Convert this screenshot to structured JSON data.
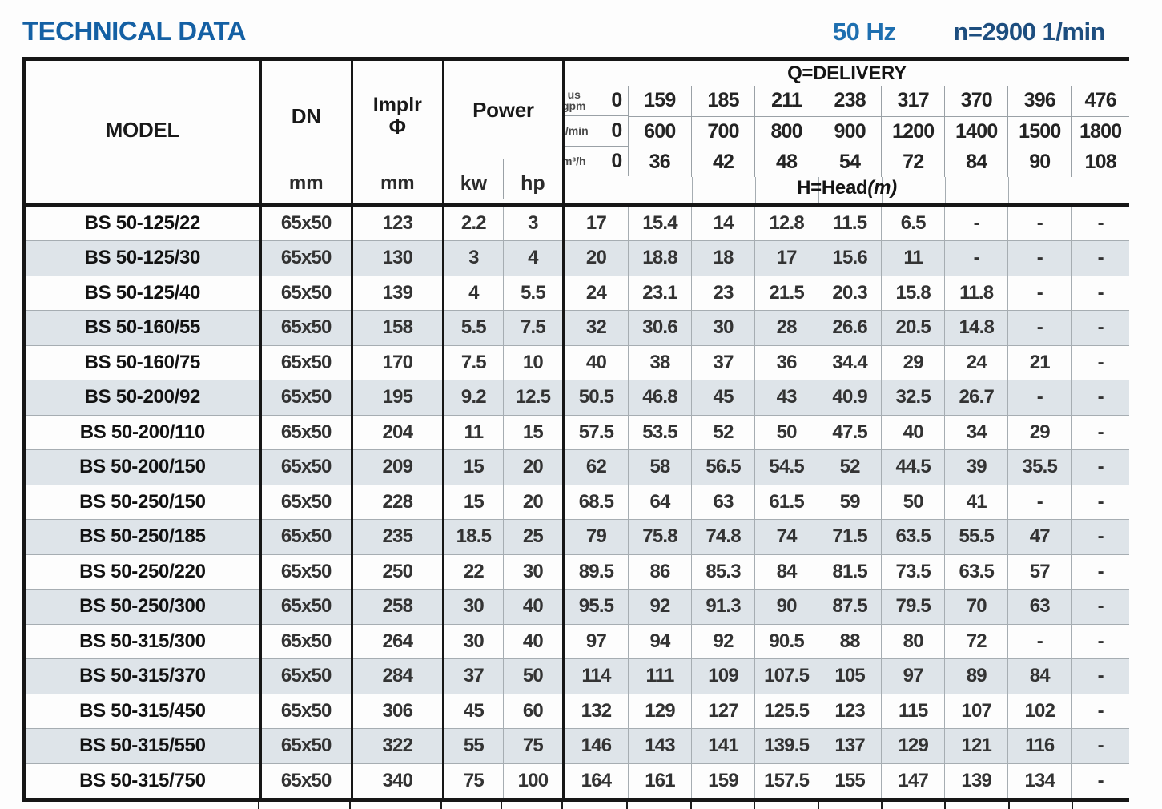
{
  "page": {
    "title": "TECHNICAL DATA",
    "frequency": "50 Hz",
    "rotation_speed": "n=2900 1/min"
  },
  "colors": {
    "title_blue": "#1460a4",
    "frequency_blue": "#1e6fb0",
    "speed_navy": "#1d4e7f",
    "row_shade": "#dee4e9",
    "thick_border": "#161616",
    "thin_grid": "#a6adb2"
  },
  "chart_data": {
    "type": "table",
    "title": "TECHNICAL DATA",
    "header": {
      "model": "MODEL",
      "dn": "DN",
      "dn_unit": "mm",
      "impeller": "Implr",
      "impeller_symbol": "Φ",
      "impeller_unit": "mm",
      "power": "Power",
      "power_kw": "kw",
      "power_hp": "hp",
      "delivery": "Q=DELIVERY",
      "head": "H=Head",
      "head_unit": "(m)",
      "flow_rows": [
        {
          "unit": "us\ngpm",
          "values": [
            "0",
            "159",
            "185",
            "211",
            "238",
            "317",
            "370",
            "396",
            "476"
          ]
        },
        {
          "unit": "l/min",
          "values": [
            "0",
            "600",
            "700",
            "800",
            "900",
            "1200",
            "1400",
            "1500",
            "1800"
          ]
        },
        {
          "unit": "m³/h",
          "values": [
            "0",
            "36",
            "42",
            "48",
            "54",
            "72",
            "84",
            "90",
            "108"
          ]
        }
      ]
    },
    "rows": [
      {
        "model": "BS 50-125/22",
        "dn": "65x50",
        "impeller": "123",
        "kw": "2.2",
        "hp": "3",
        "head": [
          "17",
          "15.4",
          "14",
          "12.8",
          "11.5",
          "6.5",
          "-",
          "-",
          "-"
        ]
      },
      {
        "model": "BS 50-125/30",
        "dn": "65x50",
        "impeller": "130",
        "kw": "3",
        "hp": "4",
        "head": [
          "20",
          "18.8",
          "18",
          "17",
          "15.6",
          "11",
          "-",
          "-",
          "-"
        ]
      },
      {
        "model": "BS 50-125/40",
        "dn": "65x50",
        "impeller": "139",
        "kw": "4",
        "hp": "5.5",
        "head": [
          "24",
          "23.1",
          "23",
          "21.5",
          "20.3",
          "15.8",
          "11.8",
          "-",
          "-"
        ]
      },
      {
        "model": "BS 50-160/55",
        "dn": "65x50",
        "impeller": "158",
        "kw": "5.5",
        "hp": "7.5",
        "head": [
          "32",
          "30.6",
          "30",
          "28",
          "26.6",
          "20.5",
          "14.8",
          "-",
          "-"
        ]
      },
      {
        "model": "BS 50-160/75",
        "dn": "65x50",
        "impeller": "170",
        "kw": "7.5",
        "hp": "10",
        "head": [
          "40",
          "38",
          "37",
          "36",
          "34.4",
          "29",
          "24",
          "21",
          "-"
        ]
      },
      {
        "model": "BS 50-200/92",
        "dn": "65x50",
        "impeller": "195",
        "kw": "9.2",
        "hp": "12.5",
        "head": [
          "50.5",
          "46.8",
          "45",
          "43",
          "40.9",
          "32.5",
          "26.7",
          "-",
          "-"
        ]
      },
      {
        "model": "BS 50-200/110",
        "dn": "65x50",
        "impeller": "204",
        "kw": "11",
        "hp": "15",
        "head": [
          "57.5",
          "53.5",
          "52",
          "50",
          "47.5",
          "40",
          "34",
          "29",
          "-"
        ]
      },
      {
        "model": "BS 50-200/150",
        "dn": "65x50",
        "impeller": "209",
        "kw": "15",
        "hp": "20",
        "head": [
          "62",
          "58",
          "56.5",
          "54.5",
          "52",
          "44.5",
          "39",
          "35.5",
          "-"
        ]
      },
      {
        "model": "BS 50-250/150",
        "dn": "65x50",
        "impeller": "228",
        "kw": "15",
        "hp": "20",
        "head": [
          "68.5",
          "64",
          "63",
          "61.5",
          "59",
          "50",
          "41",
          "-",
          "-"
        ]
      },
      {
        "model": "BS 50-250/185",
        "dn": "65x50",
        "impeller": "235",
        "kw": "18.5",
        "hp": "25",
        "head": [
          "79",
          "75.8",
          "74.8",
          "74",
          "71.5",
          "63.5",
          "55.5",
          "47",
          "-"
        ]
      },
      {
        "model": "BS 50-250/220",
        "dn": "65x50",
        "impeller": "250",
        "kw": "22",
        "hp": "30",
        "head": [
          "89.5",
          "86",
          "85.3",
          "84",
          "81.5",
          "73.5",
          "63.5",
          "57",
          "-"
        ]
      },
      {
        "model": "BS 50-250/300",
        "dn": "65x50",
        "impeller": "258",
        "kw": "30",
        "hp": "40",
        "head": [
          "95.5",
          "92",
          "91.3",
          "90",
          "87.5",
          "79.5",
          "70",
          "63",
          "-"
        ]
      },
      {
        "model": "BS 50-315/300",
        "dn": "65x50",
        "impeller": "264",
        "kw": "30",
        "hp": "40",
        "head": [
          "97",
          "94",
          "92",
          "90.5",
          "88",
          "80",
          "72",
          "-",
          "-"
        ]
      },
      {
        "model": "BS 50-315/370",
        "dn": "65x50",
        "impeller": "284",
        "kw": "37",
        "hp": "50",
        "head": [
          "114",
          "111",
          "109",
          "107.5",
          "105",
          "97",
          "89",
          "84",
          "-"
        ]
      },
      {
        "model": "BS 50-315/450",
        "dn": "65x50",
        "impeller": "306",
        "kw": "45",
        "hp": "60",
        "head": [
          "132",
          "129",
          "127",
          "125.5",
          "123",
          "115",
          "107",
          "102",
          "-"
        ]
      },
      {
        "model": "BS 50-315/550",
        "dn": "65x50",
        "impeller": "322",
        "kw": "55",
        "hp": "75",
        "head": [
          "146",
          "143",
          "141",
          "139.5",
          "137",
          "129",
          "121",
          "116",
          "-"
        ]
      },
      {
        "model": "BS 50-315/750",
        "dn": "65x50",
        "impeller": "340",
        "kw": "75",
        "hp": "100",
        "head": [
          "164",
          "161",
          "159",
          "157.5",
          "155",
          "147",
          "139",
          "134",
          "-"
        ]
      }
    ]
  }
}
